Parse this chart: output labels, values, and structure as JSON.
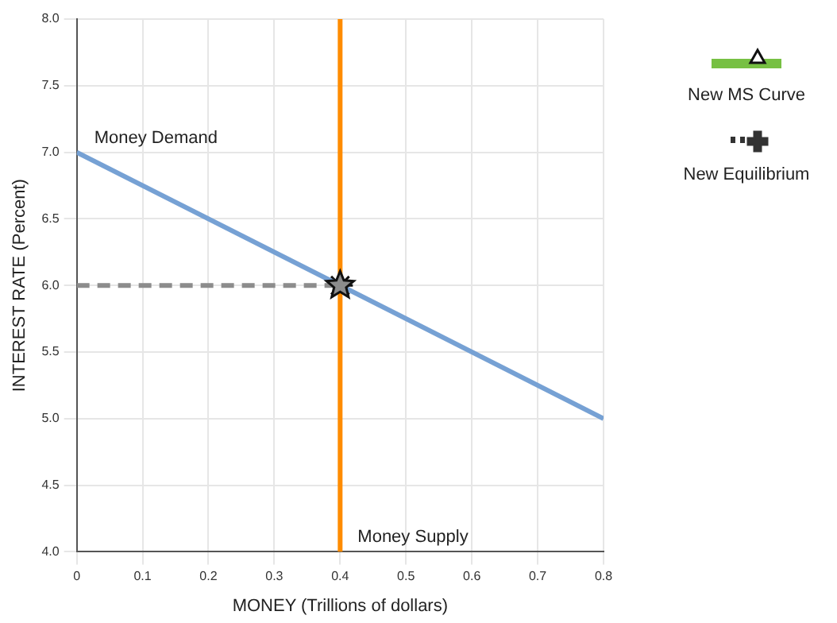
{
  "chart_data": {
    "type": "line",
    "xlabel": "MONEY (Trillions of dollars)",
    "ylabel": "INTEREST RATE (Percent)",
    "xlim": [
      0,
      0.8
    ],
    "xticks": [
      0,
      0.1,
      0.2,
      0.3,
      0.4,
      0.5,
      0.6,
      0.7,
      0.8
    ],
    "ylim": [
      4,
      8
    ],
    "yticks": [
      {
        "value": 4,
        "label": "4.0"
      },
      {
        "value": 4.5,
        "label": "4.5"
      },
      {
        "value": 5,
        "label": "5.0"
      },
      {
        "value": 5.5,
        "label": "5.5"
      },
      {
        "value": 6,
        "label": "6.0"
      },
      {
        "value": 6.5,
        "label": "6.5"
      },
      {
        "value": 7,
        "label": "7.0"
      },
      {
        "value": 7.5,
        "label": "7.5"
      },
      {
        "value": 8,
        "label": "8.0"
      }
    ],
    "grid": true,
    "legend": "right",
    "series": [
      {
        "name": "Money Demand",
        "color": "#76a1d4",
        "x": [
          0,
          0.8
        ],
        "values": [
          7,
          5
        ],
        "line_style": "solid"
      },
      {
        "name": "Money Supply",
        "color": "#ff8c00",
        "x": [
          0.4,
          0.4
        ],
        "values": [
          4,
          8
        ],
        "line_style": "solid"
      },
      {
        "color": "#8c8c8c",
        "x": [
          0,
          0.4
        ],
        "values": [
          6,
          6
        ],
        "line_style": "dashed"
      },
      {
        "type": "scatter",
        "color": "#8c8c8c",
        "x": [
          0.4
        ],
        "values": [
          6
        ],
        "marker": "star"
      },
      {
        "name": "New MS Curve",
        "color": "#77c043",
        "marker": "triangle",
        "line_style": "solid"
      },
      {
        "name": "New Equilibrium",
        "color": "#333333",
        "marker": "cross",
        "line_style": "dotted"
      }
    ]
  }
}
